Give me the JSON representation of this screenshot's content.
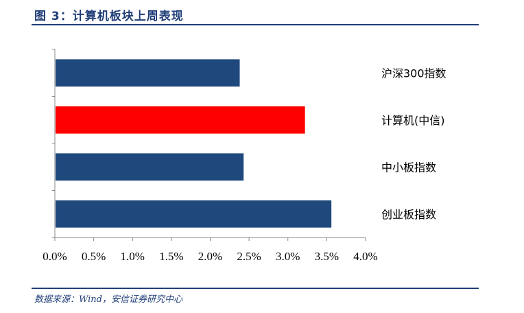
{
  "caption": "图 3：计算机板块上周表现",
  "source": "数据来源：Wind，安信证券研究中心",
  "colors": {
    "accent": "#1f3d78",
    "bar_default": "#1f497d",
    "bar_highlight": "#ff0000"
  },
  "chart_data": {
    "type": "bar",
    "orientation": "horizontal",
    "title": "",
    "xlabel": "",
    "ylabel": "",
    "categories": [
      "沪深300指数",
      "计算机(中信)",
      "中小板指数",
      "创业板指数"
    ],
    "values": [
      2.38,
      3.22,
      2.43,
      3.56
    ],
    "highlight_index": 1,
    "xlim": [
      0,
      4
    ],
    "xticks": [
      0,
      0.5,
      1,
      1.5,
      2,
      2.5,
      3,
      3.5,
      4
    ],
    "xtick_labels": [
      "0.0%",
      "0.5%",
      "1.0%",
      "1.5%",
      "2.0%",
      "2.5%",
      "3.0%",
      "3.5%",
      "4.0%"
    ],
    "grid": false,
    "legend": "none"
  }
}
